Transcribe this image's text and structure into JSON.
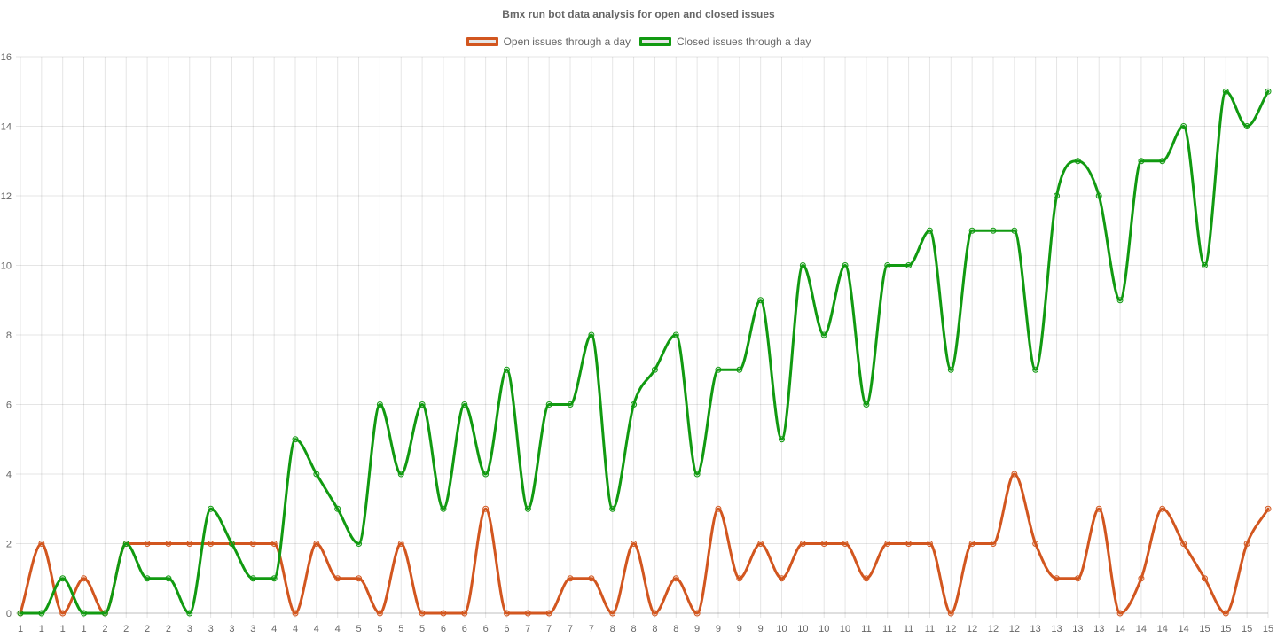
{
  "chart_data": {
    "type": "line",
    "title": "Bmx run bot data analysis for open and closed issues",
    "x": [
      "1",
      "1",
      "1",
      "1",
      "2",
      "2",
      "2",
      "2",
      "3",
      "3",
      "3",
      "3",
      "4",
      "4",
      "4",
      "4",
      "5",
      "5",
      "5",
      "5",
      "6",
      "6",
      "6",
      "6",
      "7",
      "7",
      "7",
      "7",
      "8",
      "8",
      "8",
      "8",
      "9",
      "9",
      "9",
      "9",
      "10",
      "10",
      "10",
      "10",
      "11",
      "11",
      "11",
      "11",
      "12",
      "12",
      "12",
      "12",
      "13",
      "13",
      "13",
      "13",
      "14",
      "14",
      "14",
      "14",
      "15",
      "15",
      "15",
      "15"
    ],
    "ylim": [
      0,
      16
    ],
    "yticks": [
      0,
      2,
      4,
      6,
      8,
      10,
      12,
      14,
      16
    ],
    "grid": true,
    "legend_position": "top",
    "series": [
      {
        "name": "Open issues through a day",
        "color": "#d2561f",
        "values": [
          0,
          2,
          0,
          1,
          0,
          2,
          2,
          2,
          2,
          2,
          2,
          2,
          2,
          0,
          2,
          1,
          1,
          0,
          2,
          0,
          0,
          0,
          3,
          0,
          0,
          0,
          1,
          1,
          0,
          2,
          0,
          1,
          0,
          3,
          1,
          2,
          1,
          2,
          2,
          2,
          1,
          2,
          2,
          2,
          0,
          2,
          2,
          4,
          2,
          1,
          1,
          3,
          0,
          1,
          3,
          2,
          1,
          0,
          2,
          3
        ]
      },
      {
        "name": "Closed issues through a day",
        "color": "#119a11",
        "values": [
          0,
          0,
          1,
          0,
          0,
          2,
          1,
          1,
          0,
          3,
          2,
          1,
          1,
          5,
          4,
          3,
          2,
          6,
          4,
          6,
          3,
          6,
          4,
          7,
          3,
          6,
          6,
          8,
          3,
          6,
          7,
          8,
          4,
          7,
          7,
          9,
          5,
          10,
          8,
          10,
          6,
          10,
          10,
          11,
          7,
          11,
          11,
          11,
          7,
          12,
          13,
          12,
          9,
          13,
          13,
          14,
          10,
          15,
          14,
          15
        ]
      }
    ]
  }
}
